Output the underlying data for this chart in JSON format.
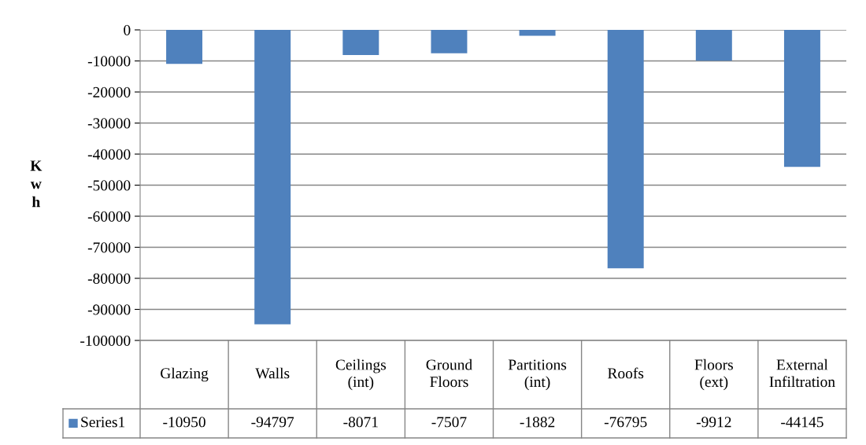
{
  "chart_data": {
    "type": "bar",
    "ylabel": "Kwh",
    "categories": [
      "Glazing",
      "Walls",
      "Ceilings (int)",
      "Ground Floors",
      "Partitions (int)",
      "Roofs",
      "Floors (ext)",
      "External Infiltration"
    ],
    "series": [
      {
        "name": "Series1",
        "color": "#4f81bd",
        "values": [
          -10950,
          -94797,
          -8071,
          -7507,
          -1882,
          -76795,
          -9912,
          -44145
        ]
      }
    ],
    "ylim": [
      -100000,
      0
    ],
    "yticks": [
      -100000,
      -90000,
      -80000,
      -70000,
      -60000,
      -50000,
      -40000,
      -30000,
      -20000,
      -10000,
      0
    ],
    "grid": "y",
    "legend": "bottom",
    "data_labels": true
  }
}
